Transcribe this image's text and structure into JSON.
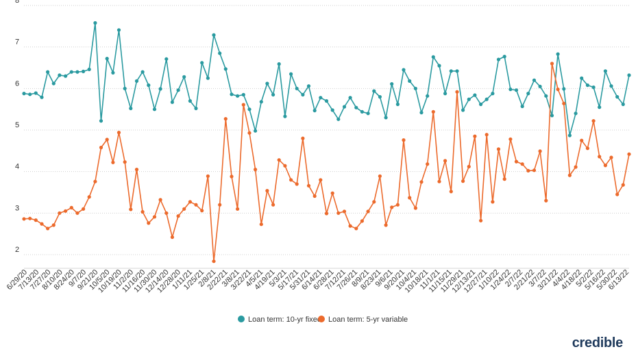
{
  "chart_data": {
    "type": "line",
    "ylim": [
      1.5,
      8
    ],
    "yticks": [
      2,
      3,
      4,
      5,
      6,
      7,
      8
    ],
    "grid": "horizontal, dotted",
    "legend_position": "bottom-center",
    "x_tick_labels": [
      "6/29/20",
      "7/13/20",
      "7/27/20",
      "8/10/20",
      "8/24/20",
      "9/7/20",
      "9/21/20",
      "10/5/20",
      "10/19/20",
      "11/2/20",
      "11/16/20",
      "11/30/20",
      "12/14/20",
      "12/28/20",
      "1/11/21",
      "1/25/21",
      "2/8/21",
      "2/22/21",
      "3/8/21",
      "3/22/21",
      "4/5/21",
      "4/19/21",
      "5/3/21",
      "5/17/21",
      "5/31/21",
      "6/14/21",
      "6/28/21",
      "7/12/21",
      "7/26/21",
      "8/9/21",
      "8/23/21",
      "9/6/21",
      "9/20/21",
      "10/4/21",
      "10/18/21",
      "11/1/21",
      "11/15/21",
      "11/29/21",
      "12/13/21",
      "12/27/21",
      "1/10/22",
      "1/24/22",
      "2/7/22",
      "2/21/22",
      "3/7/22",
      "3/21/22",
      "4/4/22",
      "4/18/22",
      "5/2/22",
      "5/16/22",
      "5/30/22",
      "6/13/22"
    ],
    "series": [
      {
        "name": "Loan term: 10-yr fixed",
        "color": "#2a9aa0",
        "values": [
          5.88,
          5.86,
          5.89,
          5.79,
          6.4,
          6.12,
          6.32,
          6.3,
          6.4,
          6.4,
          6.41,
          6.46,
          7.58,
          5.22,
          6.72,
          6.38,
          7.41,
          6.0,
          5.52,
          6.18,
          6.4,
          6.08,
          5.5,
          5.99,
          6.71,
          5.67,
          5.96,
          6.28,
          5.7,
          5.52,
          6.62,
          6.25,
          7.29,
          6.85,
          6.47,
          5.86,
          5.82,
          5.85,
          5.5,
          4.98,
          5.68,
          6.12,
          5.85,
          6.59,
          5.33,
          6.35,
          6.0,
          5.85,
          6.06,
          5.47,
          5.78,
          5.7,
          5.48,
          5.26,
          5.56,
          5.78,
          5.54,
          5.44,
          5.4,
          5.94,
          5.8,
          5.3,
          6.11,
          5.62,
          6.45,
          6.18,
          6.0,
          5.42,
          5.82,
          6.76,
          6.55,
          5.88,
          6.42,
          6.42,
          5.48,
          5.74,
          5.84,
          5.62,
          5.74,
          5.88,
          6.7,
          6.77,
          5.98,
          5.96,
          5.57,
          5.88,
          6.2,
          6.05,
          5.82,
          5.35,
          6.83,
          5.99,
          4.87,
          5.4,
          6.25,
          6.08,
          6.03,
          5.55,
          6.42,
          6.06,
          5.8,
          5.62,
          6.32
        ]
      },
      {
        "name": "Loan term: 5-yr variable",
        "color": "#ec6a2c",
        "values": [
          2.86,
          2.87,
          2.83,
          2.74,
          2.63,
          2.71,
          3.0,
          3.05,
          3.13,
          3.0,
          3.1,
          3.39,
          3.76,
          4.58,
          4.77,
          4.22,
          4.94,
          4.23,
          3.09,
          4.05,
          3.03,
          2.76,
          2.91,
          3.32,
          3.0,
          2.42,
          2.93,
          3.1,
          3.27,
          3.2,
          3.06,
          3.89,
          1.84,
          3.2,
          5.27,
          3.88,
          3.1,
          5.61,
          4.93,
          4.05,
          2.73,
          3.54,
          3.2,
          4.28,
          4.14,
          3.8,
          3.7,
          4.8,
          3.66,
          3.41,
          3.8,
          2.99,
          3.48,
          3.0,
          3.04,
          2.69,
          2.63,
          2.81,
          3.04,
          3.27,
          3.89,
          2.71,
          3.14,
          3.2,
          4.76,
          3.37,
          3.12,
          3.75,
          4.18,
          5.44,
          3.76,
          4.26,
          3.52,
          5.92,
          3.77,
          4.12,
          4.85,
          2.82,
          4.89,
          3.27,
          4.54,
          3.82,
          4.78,
          4.24,
          4.18,
          4.02,
          4.03,
          4.49,
          3.3,
          6.6,
          5.98,
          5.64,
          3.91,
          4.11,
          4.75,
          4.56,
          5.22,
          4.36,
          4.15,
          4.34,
          3.45,
          3.68,
          4.42
        ]
      }
    ]
  },
  "brand": {
    "logo_text": "credible"
  }
}
